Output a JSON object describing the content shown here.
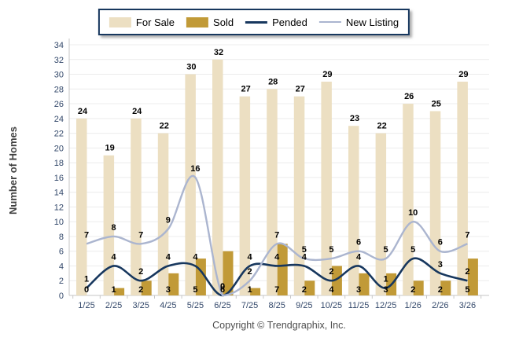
{
  "chart_data": {
    "type": "combo-bar-line",
    "categories": [
      "1/25",
      "2/25",
      "3/25",
      "4/25",
      "5/25",
      "6/25",
      "7/25",
      "8/25",
      "9/25",
      "10/25",
      "11/25",
      "12/25",
      "1/26",
      "2/26",
      "3/26"
    ],
    "series": [
      {
        "name": "For Sale",
        "type": "bar",
        "color": "#ECDFC2",
        "values": [
          24,
          19,
          24,
          22,
          30,
          32,
          27,
          28,
          27,
          29,
          23,
          22,
          26,
          25,
          29
        ]
      },
      {
        "name": "Sold",
        "type": "bar",
        "color": "#C19A37",
        "values": [
          0,
          1,
          2,
          3,
          5,
          6,
          1,
          7,
          2,
          4,
          3,
          3,
          2,
          2,
          5
        ]
      },
      {
        "name": "Pended",
        "type": "line",
        "color": "#17375E",
        "values": [
          1,
          4,
          2,
          4,
          4,
          0,
          4,
          4,
          4,
          2,
          4,
          1,
          5,
          3,
          2
        ]
      },
      {
        "name": "New Listing",
        "type": "line",
        "color": "#ABB5CF",
        "values": [
          7,
          8,
          7,
          9,
          16,
          0,
          2,
          7,
          5,
          5,
          6,
          5,
          10,
          6,
          7
        ]
      }
    ],
    "ylabel": "Number of Homes",
    "xlabel": "",
    "title": "",
    "ylim": [
      0,
      34
    ],
    "ytick_step": 2,
    "grid": "horizontal",
    "legend_position": "top-center"
  },
  "footer": {
    "copyright": "Copyright © Trendgraphix, Inc."
  },
  "colors": {
    "grid": "#ECECEC",
    "axis": "#C6C6C6",
    "tick_text": "#34496B",
    "value_label": "#000000",
    "legend_border": "#17375E"
  }
}
